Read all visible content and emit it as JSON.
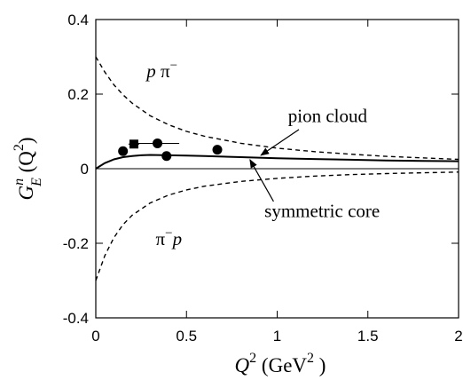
{
  "chart_data": {
    "type": "line",
    "title": "",
    "xlabel": {
      "main": "Q",
      "sup": "2",
      "unit_open": "(GeV",
      "unit_sup": "2",
      "unit_close": ")"
    },
    "ylabel": {
      "main": "G",
      "sup": "n",
      "sub": "E",
      "arg_open": "(Q",
      "arg_sup": "2",
      "arg_close": ")"
    },
    "xlim": [
      0,
      2
    ],
    "ylim": [
      -0.4,
      0.4
    ],
    "x_ticks": [
      {
        "value": 0,
        "label": "0"
      },
      {
        "value": 0.5,
        "label": "0.5"
      },
      {
        "value": 1,
        "label": "1"
      },
      {
        "value": 1.5,
        "label": "1.5"
      },
      {
        "value": 2,
        "label": "2"
      }
    ],
    "y_ticks": [
      {
        "value": -0.4,
        "label": "-0.4"
      },
      {
        "value": -0.2,
        "label": "-0.2"
      },
      {
        "value": 0,
        "label": "0"
      },
      {
        "value": 0.2,
        "label": "0.2"
      },
      {
        "value": 0.4,
        "label": "0.4"
      }
    ],
    "grid": false,
    "series": [
      {
        "style": "dashed",
        "x": [
          0,
          0.05,
          0.1,
          0.15,
          0.2,
          0.3,
          0.4,
          0.5,
          0.6,
          0.8,
          1.0,
          1.2,
          1.4,
          1.6,
          1.8,
          2.0
        ],
        "y": [
          0.3,
          0.259,
          0.225,
          0.198,
          0.176,
          0.142,
          0.118,
          0.1,
          0.087,
          0.068,
          0.055,
          0.046,
          0.039,
          0.033,
          0.029,
          0.025
        ]
      },
      {
        "style": "dashed",
        "x": [
          0,
          0.05,
          0.1,
          0.15,
          0.2,
          0.3,
          0.4,
          0.5,
          0.6,
          0.8,
          1.0,
          1.2,
          1.4,
          1.6,
          1.8,
          2.0
        ],
        "y": [
          -0.3,
          -0.233,
          -0.185,
          -0.15,
          -0.125,
          -0.092,
          -0.071,
          -0.057,
          -0.047,
          -0.034,
          -0.026,
          -0.02,
          -0.016,
          -0.013,
          -0.011,
          -0.009
        ]
      },
      {
        "style": "solid",
        "x": [
          0,
          0.05,
          0.1,
          0.15,
          0.2,
          0.25,
          0.3,
          0.4,
          0.5,
          0.6,
          0.8,
          1.0,
          1.2,
          1.4,
          1.6,
          1.8,
          2.0
        ],
        "y": [
          0,
          0.015,
          0.025,
          0.031,
          0.034,
          0.036,
          0.037,
          0.036,
          0.035,
          0.034,
          0.031,
          0.028,
          0.026,
          0.024,
          0.022,
          0.021,
          0.02
        ]
      }
    ],
    "measurements": [
      {
        "marker": "circle",
        "x": 0.15,
        "y": 0.047,
        "xerr": 0,
        "yerr": 0.004
      },
      {
        "marker": "square",
        "x": 0.21,
        "y": 0.066,
        "xerr": 0.03,
        "yerr": 0.008
      },
      {
        "marker": "circle",
        "x": 0.34,
        "y": 0.068,
        "xerr": 0.12,
        "yerr": 0.004
      },
      {
        "marker": "circle",
        "x": 0.39,
        "y": 0.034,
        "xerr": 0,
        "yerr": 0.004
      },
      {
        "marker": "circle",
        "x": 0.67,
        "y": 0.051,
        "xerr": 0,
        "yerr": 0.004
      }
    ],
    "annotations": [
      {
        "id": "p-pi-minus",
        "parts": [
          {
            "t": "p",
            "it": true
          },
          {
            "t": " π",
            "it": false
          }
        ],
        "sup": "−",
        "x": 0.28,
        "y": 0.245
      },
      {
        "id": "pi-minus-p",
        "parts": [
          {
            "t": "π",
            "it": false
          }
        ],
        "sup": "−",
        "tail": "p",
        "x": 0.33,
        "y": -0.205
      },
      {
        "id": "pion-cloud",
        "parts": [
          {
            "t": "pion cloud",
            "it": false
          }
        ],
        "x": 1.06,
        "y": 0.125,
        "arrow_from": [
          1.12,
          0.105
        ],
        "arrow_to": [
          0.91,
          0.036
        ]
      },
      {
        "id": "symmetric-core",
        "parts": [
          {
            "t": "symmetric core",
            "it": false
          }
        ],
        "x": 0.93,
        "y": -0.13,
        "arrow_from": [
          0.98,
          -0.088
        ],
        "arrow_to": [
          0.85,
          0.024
        ]
      }
    ]
  }
}
